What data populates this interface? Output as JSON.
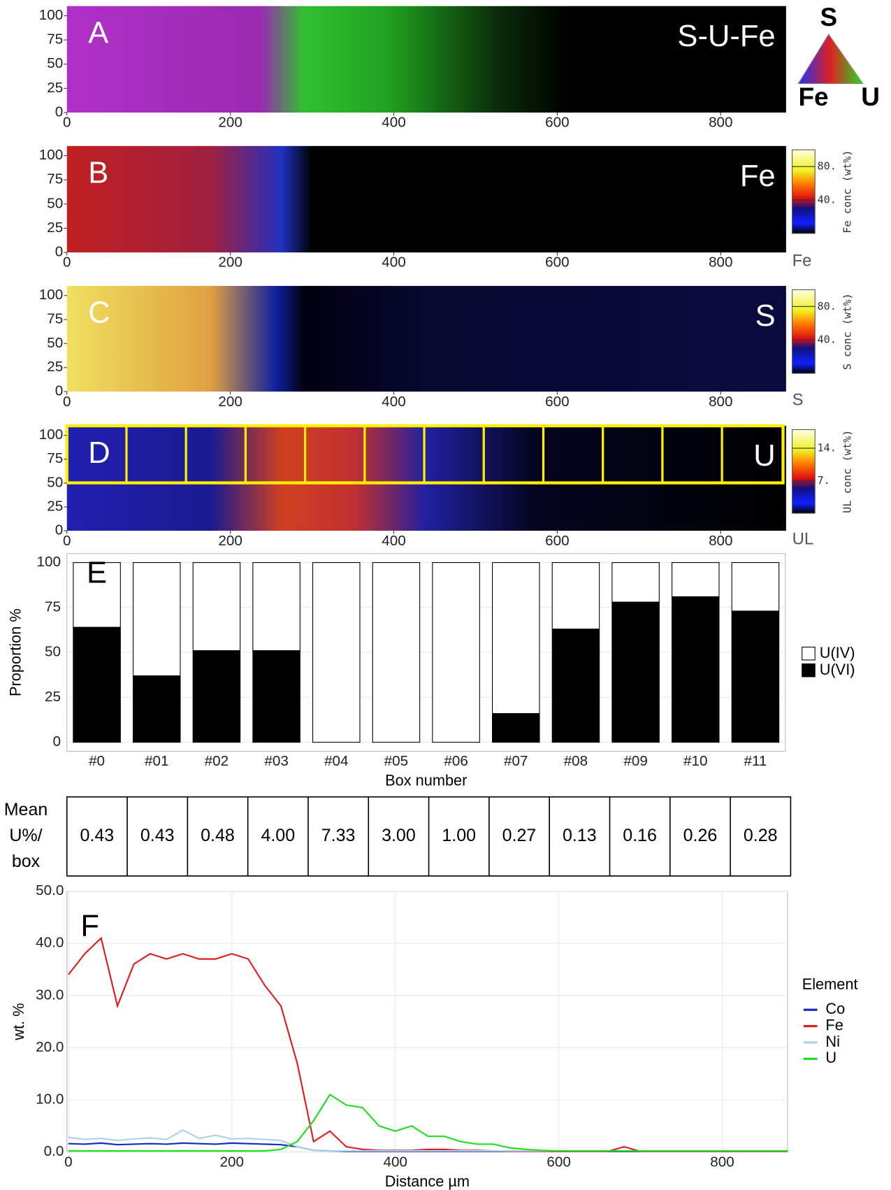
{
  "chart_data": [
    {
      "type": "heatmap",
      "label": "A",
      "title": "S-U-Fe",
      "xlim": [
        0,
        880
      ],
      "xticks": [
        0,
        200,
        400,
        600,
        800
      ],
      "ylim": [
        0,
        110
      ],
      "yticks": [
        0,
        25,
        50,
        75,
        100
      ],
      "ternary_labels": [
        "S",
        "Fe",
        "U"
      ]
    },
    {
      "type": "heatmap",
      "label": "B",
      "title": "Fe",
      "xlim": [
        0,
        880
      ],
      "xticks": [
        0,
        200,
        400,
        600,
        800
      ],
      "ylim": [
        0,
        110
      ],
      "yticks": [
        0,
        25,
        50,
        75,
        100
      ],
      "colorbar": {
        "title": "Fe conc (wt%)",
        "clim": [
          0,
          100
        ],
        "ticks": [
          {
            "value": 40,
            "label": "40."
          },
          {
            "value": 80,
            "label": "80."
          }
        ]
      },
      "corner_label": "Fe"
    },
    {
      "type": "heatmap",
      "label": "C",
      "title": "S",
      "xlim": [
        0,
        880
      ],
      "xticks": [
        0,
        200,
        400,
        600,
        800
      ],
      "ylim": [
        0,
        110
      ],
      "yticks": [
        0,
        25,
        50,
        75,
        100
      ],
      "colorbar": {
        "title": "S conc (wt%)",
        "clim": [
          0,
          100
        ],
        "ticks": [
          {
            "value": 40,
            "label": "40."
          },
          {
            "value": 80,
            "label": "80."
          }
        ]
      },
      "corner_label": "S"
    },
    {
      "type": "heatmap",
      "label": "D",
      "title": "U",
      "xlim": [
        0,
        880
      ],
      "xticks": [
        0,
        200,
        400,
        600,
        800
      ],
      "ylim": [
        0,
        110
      ],
      "yticks": [
        0,
        25,
        50,
        75,
        100
      ],
      "colorbar": {
        "title": "UL conc (wt%)",
        "clim": [
          0,
          18
        ],
        "ticks": [
          {
            "value": 7,
            "label": "7."
          },
          {
            "value": 14,
            "label": "14."
          }
        ]
      },
      "corner_label": "UL"
    },
    {
      "type": "bar",
      "label": "E",
      "y_label": "Proportion %",
      "x_label": "Box number",
      "stacked": true,
      "categories": [
        "#0",
        "#01",
        "#02",
        "#03",
        "#04",
        "#05",
        "#06",
        "#07",
        "#08",
        "#09",
        "#10",
        "#11"
      ],
      "series": [
        {
          "name": "U(VI)",
          "color": "#000000",
          "values": [
            64,
            37,
            51,
            51,
            0,
            0,
            0,
            16,
            63,
            78,
            81,
            73
          ]
        },
        {
          "name": "U(IV)",
          "color": "#ffffff",
          "values": [
            36,
            63,
            49,
            49,
            100,
            100,
            100,
            84,
            37,
            22,
            19,
            27
          ]
        }
      ],
      "ylim": [
        -5,
        105
      ],
      "yticks": [
        0,
        25,
        50,
        75,
        100
      ],
      "grid": true
    },
    {
      "type": "line",
      "label": "F",
      "x_label": "Distance µm",
      "y_label": "wt. %",
      "legend_title": "Element",
      "x": [
        0,
        20,
        40,
        60,
        80,
        100,
        120,
        140,
        160,
        180,
        200,
        220,
        240,
        260,
        280,
        300,
        320,
        340,
        360,
        380,
        400,
        420,
        440,
        460,
        480,
        500,
        520,
        540,
        560,
        580,
        600,
        620,
        640,
        660,
        680,
        700,
        720,
        740,
        760,
        780,
        800,
        820,
        840,
        860,
        880
      ],
      "series": [
        {
          "name": "Co",
          "color": "#1a2db8",
          "values": [
            1.6,
            1.5,
            1.7,
            1.4,
            1.5,
            1.6,
            1.5,
            1.7,
            1.6,
            1.5,
            1.7,
            1.6,
            1.5,
            1.4,
            1.0,
            0.3,
            0.2,
            0.1,
            0.1,
            0.1,
            0.1,
            0.1,
            0.1,
            0.1,
            0.1,
            0.1,
            0.1,
            0.1,
            0.1,
            0.1,
            0.1,
            0.1,
            0.1,
            0.1,
            0.1,
            0.1,
            0.1,
            0.1,
            0.1,
            0.1,
            0.1,
            0.1,
            0.1,
            0.1,
            0.1
          ]
        },
        {
          "name": "Fe",
          "color": "#e02020",
          "values": [
            34,
            38,
            41,
            28,
            36,
            38,
            37,
            38,
            37,
            37,
            38,
            37,
            32,
            28,
            17,
            2,
            4,
            1,
            0.5,
            0.3,
            0.3,
            0.3,
            0.5,
            0.5,
            0.3,
            0.3,
            0.2,
            0.1,
            0.1,
            0.1,
            0.1,
            0.1,
            0.1,
            0.1,
            1.0,
            0.1,
            0.1,
            0.1,
            0.1,
            0.1,
            0.1,
            0.1,
            0.1,
            0.1,
            0.1
          ]
        },
        {
          "name": "Ni",
          "color": "#add3e6",
          "values": [
            2.8,
            2.4,
            2.6,
            2.2,
            2.5,
            2.7,
            2.4,
            4.2,
            2.6,
            3.2,
            2.5,
            2.6,
            2.4,
            2.2,
            1.0,
            0.3,
            0.2,
            0.2,
            0.2,
            0.2,
            0.2,
            0.2,
            0.2,
            0.2,
            0.2,
            0.2,
            0.2,
            0.2,
            0.2,
            0.2,
            0.2,
            0.2,
            0.2,
            0.2,
            0.2,
            0.2,
            0.2,
            0.2,
            0.2,
            0.2,
            0.2,
            0.2,
            0.2,
            0.2,
            0.2
          ]
        },
        {
          "name": "U",
          "color": "#22dd22",
          "values": [
            0.2,
            0.2,
            0.2,
            0.2,
            0.2,
            0.2,
            0.2,
            0.2,
            0.2,
            0.2,
            0.2,
            0.2,
            0.2,
            0.5,
            2,
            6,
            11,
            9,
            8.5,
            5,
            4,
            5,
            3,
            3,
            2,
            1.5,
            1.5,
            0.8,
            0.5,
            0.3,
            0.2,
            0.2,
            0.2,
            0.2,
            0.2,
            0.2,
            0.2,
            0.2,
            0.2,
            0.2,
            0.2,
            0.2,
            0.2,
            0.2,
            0.2
          ]
        }
      ],
      "xlim": [
        0,
        880
      ],
      "xticks": [
        0,
        200,
        400,
        600,
        800
      ],
      "ylim": [
        0,
        50
      ],
      "yticks": [
        {
          "value": 0,
          "label": "0.0"
        },
        {
          "value": 10,
          "label": "10.0"
        },
        {
          "value": 20,
          "label": "20.0"
        },
        {
          "value": 30,
          "label": "30.0"
        },
        {
          "value": 40,
          "label": "40.0"
        },
        {
          "value": 50,
          "label": "50.0"
        }
      ],
      "grid": true
    }
  ],
  "table": {
    "header": [
      "Mean",
      "U%/",
      "box"
    ],
    "values": [
      "0.43",
      "0.43",
      "0.48",
      "4.00",
      "7.33",
      "3.00",
      "1.00",
      "0.27",
      "0.13",
      "0.16",
      "0.26",
      "0.28"
    ]
  }
}
